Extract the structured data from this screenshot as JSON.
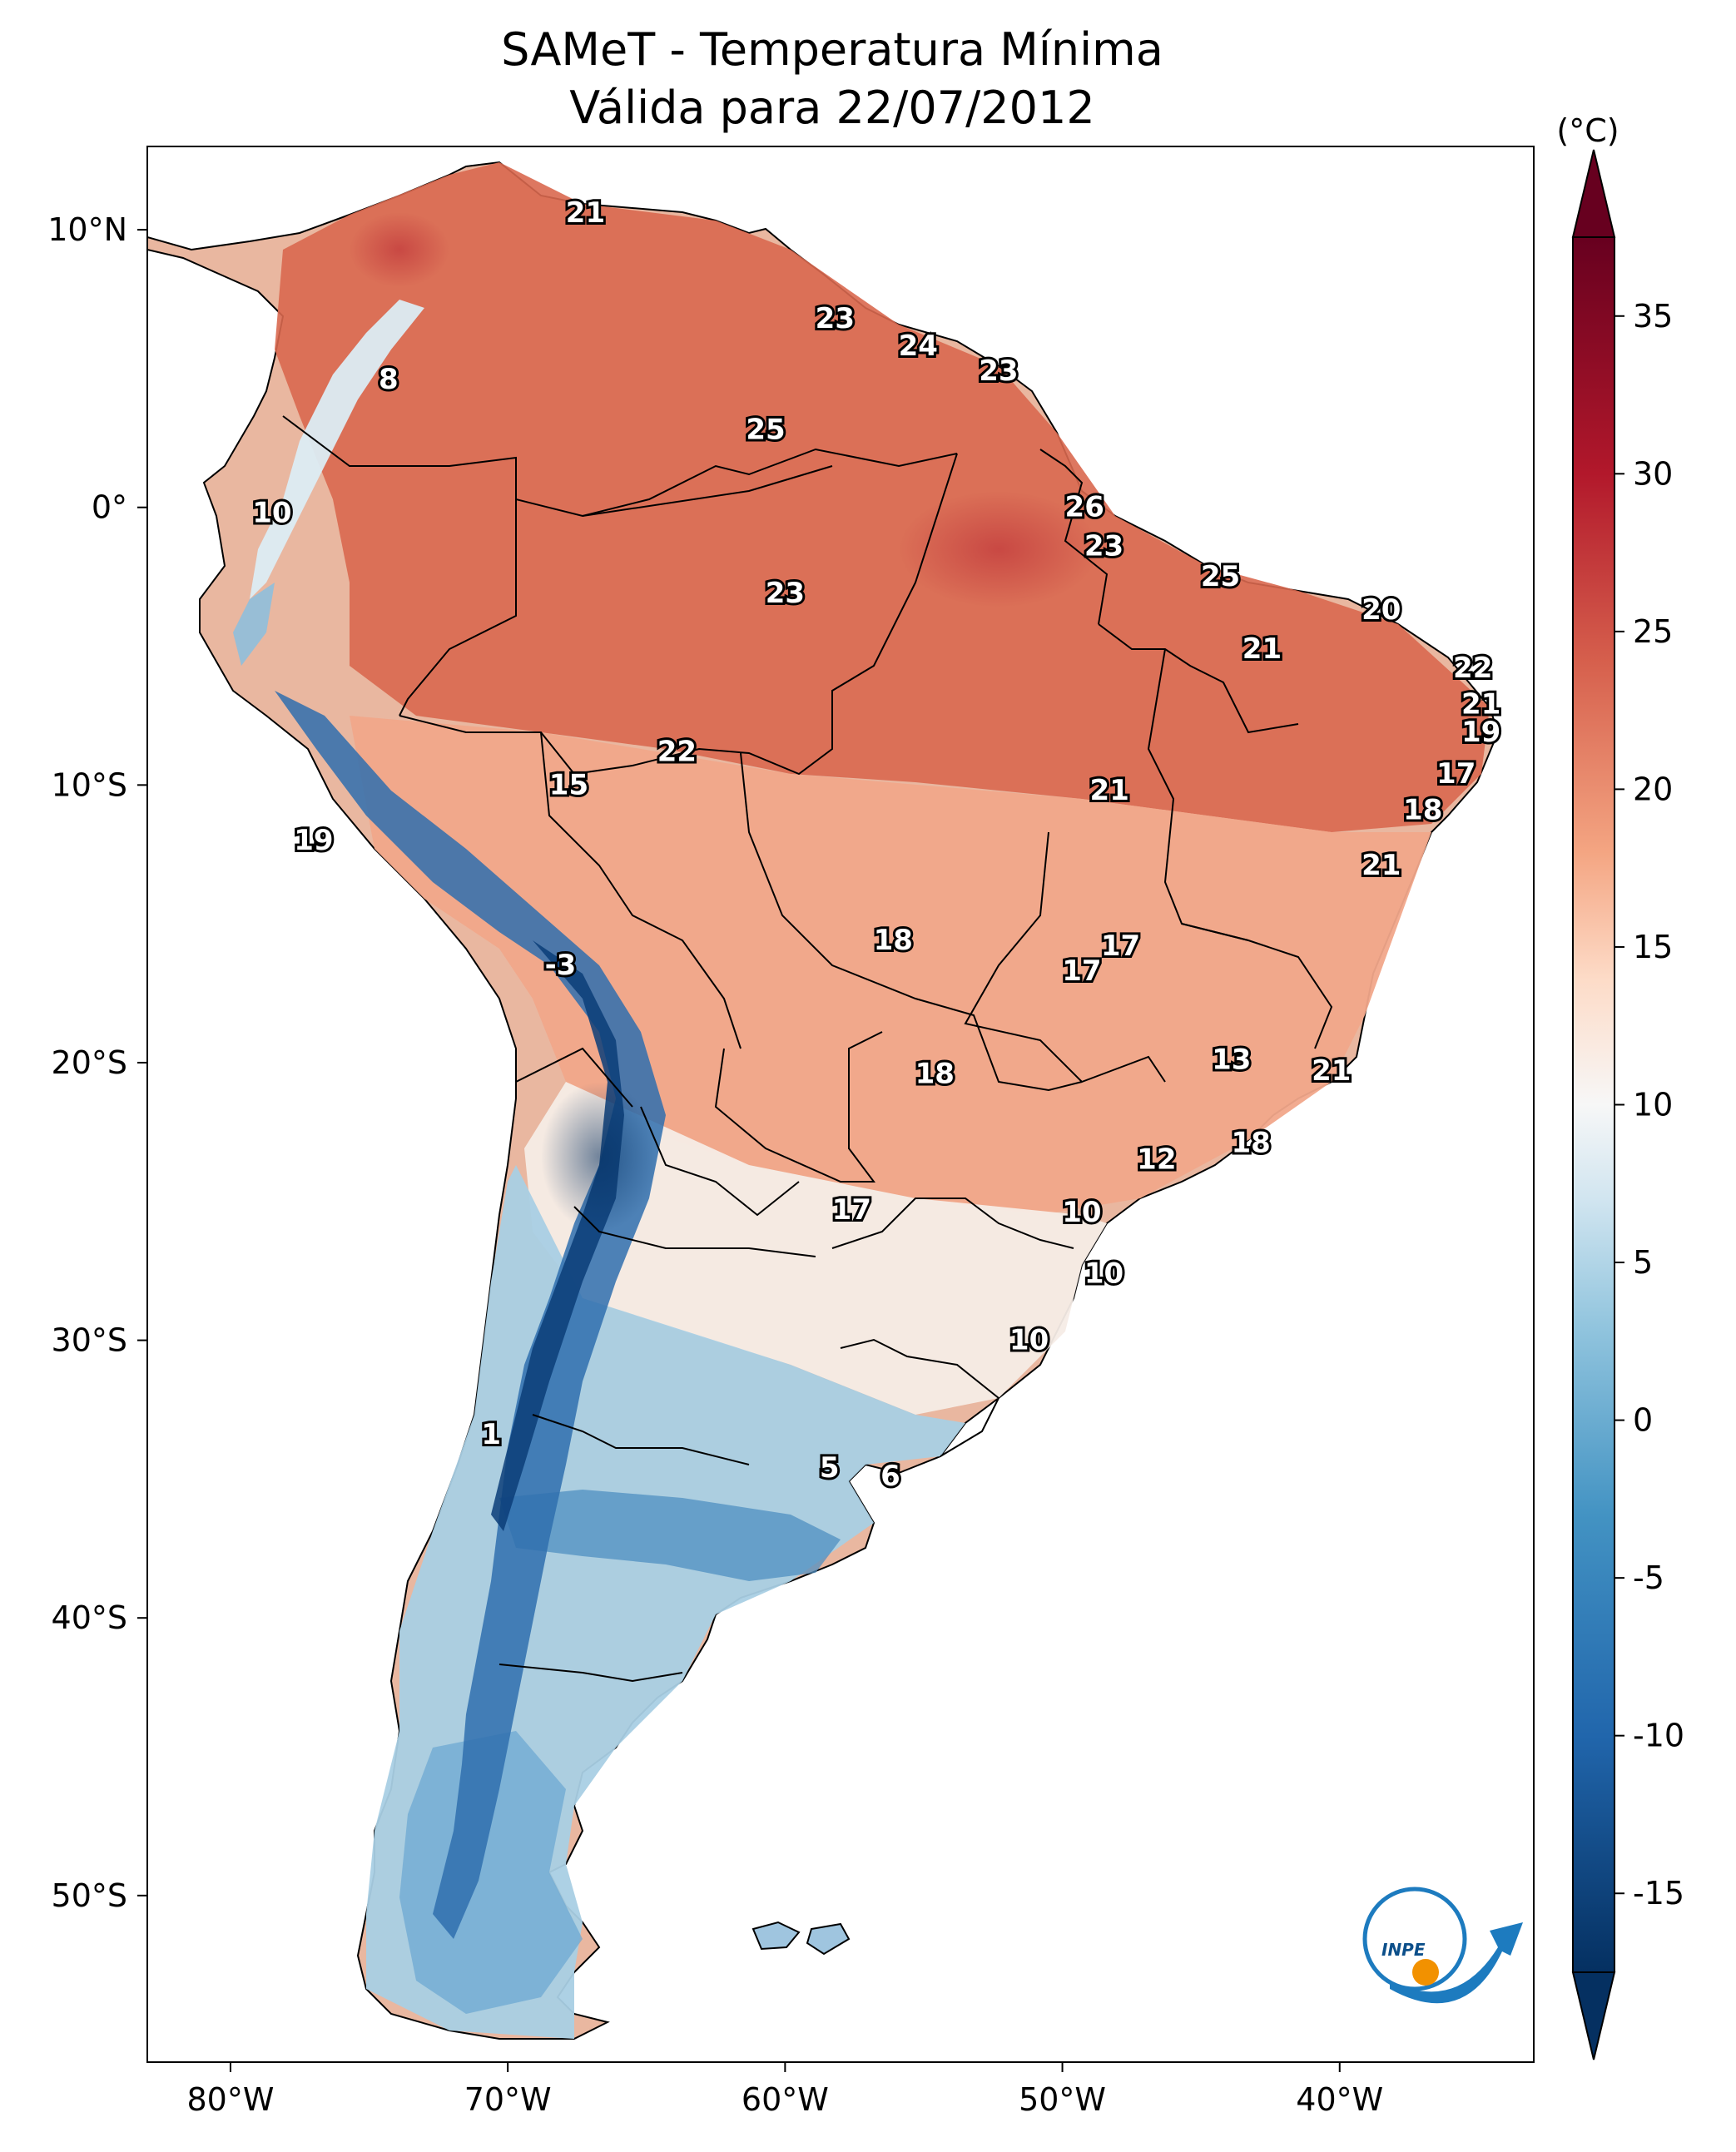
{
  "title": {
    "line1": "SAMeT - Temperatura Mínima",
    "line2": "Válida para 22/07/2012"
  },
  "map": {
    "lon_range": [
      -83,
      -33
    ],
    "lat_range": [
      -56,
      13
    ],
    "lon_ticks": [
      {
        "value": -80,
        "label": "80°W"
      },
      {
        "value": -70,
        "label": "70°W"
      },
      {
        "value": -60,
        "label": "60°W"
      },
      {
        "value": -50,
        "label": "50°W"
      },
      {
        "value": -40,
        "label": "40°W"
      }
    ],
    "lat_ticks": [
      {
        "value": 10,
        "label": "10°N"
      },
      {
        "value": 0,
        "label": "0°"
      },
      {
        "value": -10,
        "label": "10°S"
      },
      {
        "value": -20,
        "label": "20°S"
      },
      {
        "value": -30,
        "label": "30°S"
      },
      {
        "value": -40,
        "label": "40°S"
      },
      {
        "value": -50,
        "label": "50°S"
      }
    ]
  },
  "colorbar": {
    "unit": "(°C)",
    "min": -17.5,
    "max": 37.5,
    "ticks": [
      {
        "value": 35,
        "label": "35"
      },
      {
        "value": 30,
        "label": "30"
      },
      {
        "value": 25,
        "label": "25"
      },
      {
        "value": 20,
        "label": "20"
      },
      {
        "value": 15,
        "label": "15"
      },
      {
        "value": 10,
        "label": "10"
      },
      {
        "value": 5,
        "label": "5"
      },
      {
        "value": 0,
        "label": "0"
      },
      {
        "value": -5,
        "label": "-5"
      },
      {
        "value": -10,
        "label": "-10"
      },
      {
        "value": -15,
        "label": "-15"
      }
    ],
    "stops": [
      {
        "value": -17.5,
        "color": "#053061"
      },
      {
        "value": -10,
        "color": "#2166ac"
      },
      {
        "value": -3,
        "color": "#4393c3"
      },
      {
        "value": 3,
        "color": "#92c5de"
      },
      {
        "value": 7,
        "color": "#d1e5f0"
      },
      {
        "value": 10,
        "color": "#f7f7f7"
      },
      {
        "value": 14,
        "color": "#fddbc7"
      },
      {
        "value": 18,
        "color": "#f4a582"
      },
      {
        "value": 24,
        "color": "#d6604d"
      },
      {
        "value": 30,
        "color": "#b2182b"
      },
      {
        "value": 37.5,
        "color": "#67001f"
      }
    ]
  },
  "city_values": [
    {
      "lon": -67.2,
      "lat": 10.6,
      "value": "21"
    },
    {
      "lon": -74.3,
      "lat": 4.6,
      "value": "8"
    },
    {
      "lon": -78.5,
      "lat": -0.2,
      "value": "10"
    },
    {
      "lon": -58.2,
      "lat": 6.8,
      "value": "23"
    },
    {
      "lon": -55.2,
      "lat": 5.8,
      "value": "24"
    },
    {
      "lon": -52.3,
      "lat": 4.9,
      "value": "23"
    },
    {
      "lon": -60.7,
      "lat": 2.8,
      "value": "25"
    },
    {
      "lon": -49.2,
      "lat": 0.0,
      "value": "26"
    },
    {
      "lon": -60.0,
      "lat": -3.1,
      "value": "23"
    },
    {
      "lon": -48.5,
      "lat": -1.4,
      "value": "23"
    },
    {
      "lon": -44.3,
      "lat": -2.5,
      "value": "25"
    },
    {
      "lon": -38.5,
      "lat": -3.7,
      "value": "20"
    },
    {
      "lon": -42.8,
      "lat": -5.1,
      "value": "21"
    },
    {
      "lon": -35.2,
      "lat": -5.8,
      "value": "22"
    },
    {
      "lon": -34.9,
      "lat": -7.1,
      "value": "21"
    },
    {
      "lon": -34.9,
      "lat": -8.1,
      "value": "19"
    },
    {
      "lon": -35.8,
      "lat": -9.6,
      "value": "17"
    },
    {
      "lon": -37.0,
      "lat": -10.9,
      "value": "18"
    },
    {
      "lon": -38.5,
      "lat": -12.9,
      "value": "21"
    },
    {
      "lon": -63.9,
      "lat": -8.8,
      "value": "22"
    },
    {
      "lon": -67.8,
      "lat": -10.0,
      "value": "15"
    },
    {
      "lon": -48.3,
      "lat": -10.2,
      "value": "21"
    },
    {
      "lon": -77.0,
      "lat": -12.0,
      "value": "19"
    },
    {
      "lon": -56.1,
      "lat": -15.6,
      "value": "18"
    },
    {
      "lon": -47.9,
      "lat": -15.8,
      "value": "17"
    },
    {
      "lon": -49.3,
      "lat": -16.7,
      "value": "17"
    },
    {
      "lon": -68.1,
      "lat": -16.5,
      "value": "-3"
    },
    {
      "lon": -54.6,
      "lat": -20.4,
      "value": "18"
    },
    {
      "lon": -43.9,
      "lat": -19.9,
      "value": "13"
    },
    {
      "lon": -40.3,
      "lat": -20.3,
      "value": "21"
    },
    {
      "lon": -43.2,
      "lat": -22.9,
      "value": "18"
    },
    {
      "lon": -46.6,
      "lat": -23.5,
      "value": "12"
    },
    {
      "lon": -57.6,
      "lat": -25.3,
      "value": "17"
    },
    {
      "lon": -49.3,
      "lat": -25.4,
      "value": "10"
    },
    {
      "lon": -48.5,
      "lat": -27.6,
      "value": "10"
    },
    {
      "lon": -51.2,
      "lat": -30.0,
      "value": "10"
    },
    {
      "lon": -70.6,
      "lat": -33.4,
      "value": "1"
    },
    {
      "lon": -58.4,
      "lat": -34.6,
      "value": "5"
    },
    {
      "lon": -56.2,
      "lat": -34.9,
      "value": "6"
    }
  ],
  "logo_text": "INPE"
}
